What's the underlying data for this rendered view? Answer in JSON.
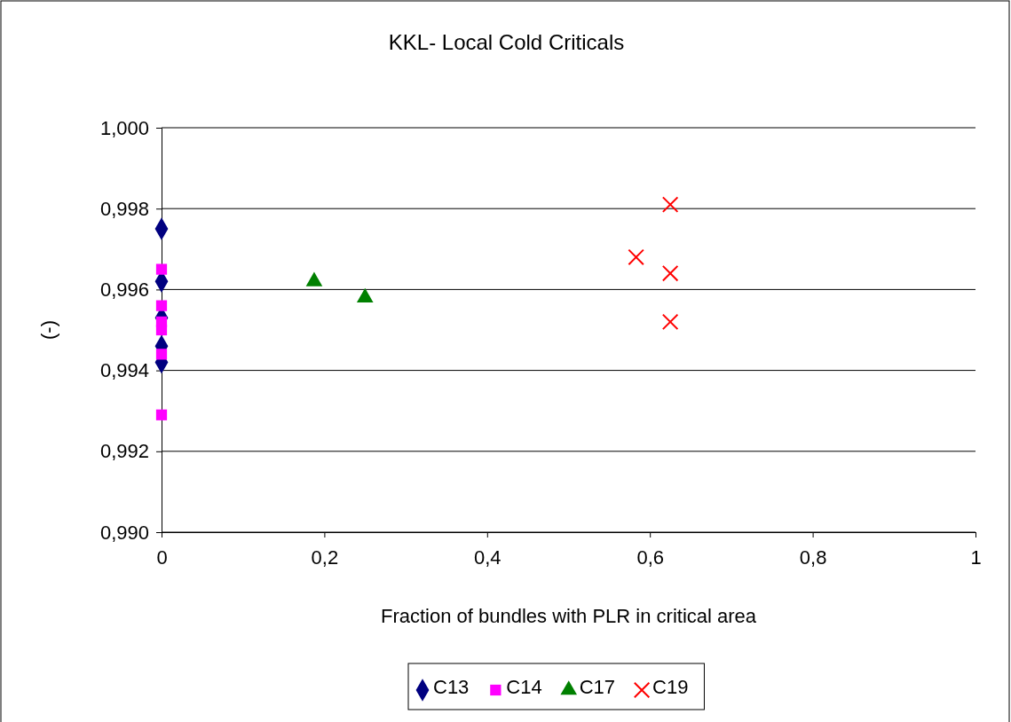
{
  "chart_data": {
    "type": "scatter",
    "title": "KKL- Local Cold Criticals",
    "xlabel": "Fraction of bundles with PLR in critical area",
    "ylabel": "(-)",
    "xlim": [
      0,
      1
    ],
    "xticks": [
      0,
      {
        "value": 0.2,
        "label": "0,2"
      },
      {
        "value": 0.4,
        "label": "0,4"
      },
      {
        "value": 0.6,
        "label": "0,6"
      },
      {
        "value": 0.8,
        "label": "0,8"
      },
      1
    ],
    "ylim": [
      0.99,
      1.0
    ],
    "yticks": [
      {
        "value": 0.99,
        "label": "0,990"
      },
      {
        "value": 0.992,
        "label": "0,992"
      },
      {
        "value": 0.994,
        "label": "0,994"
      },
      {
        "value": 0.996,
        "label": "0,996"
      },
      {
        "value": 0.998,
        "label": "0,998"
      },
      {
        "value": 1.0,
        "label": "1,000"
      }
    ],
    "grid": "y",
    "legend": "bottom",
    "series": [
      {
        "name": "C13",
        "color": "#000080",
        "marker": "diamond",
        "x": [
          0,
          0,
          0,
          0,
          0
        ],
        "values": [
          0.9975,
          0.9962,
          0.9953,
          0.9946,
          0.9942
        ]
      },
      {
        "name": "C14",
        "color": "#ff00ff",
        "marker": "square",
        "x": [
          0,
          0,
          0,
          0,
          0,
          0
        ],
        "values": [
          0.9965,
          0.9956,
          0.9952,
          0.995,
          0.9944,
          0.9929
        ]
      },
      {
        "name": "C17",
        "color": "#008000",
        "marker": "triangle",
        "x": [
          0.1875,
          0.25
        ],
        "values": [
          0.9962,
          0.9958
        ]
      },
      {
        "name": "C19",
        "color": "#ff0000",
        "marker": "cross",
        "x": [
          0.583,
          0.625,
          0.625,
          0.625
        ],
        "values": [
          0.9968,
          0.9981,
          0.9964,
          0.9952
        ]
      }
    ]
  }
}
